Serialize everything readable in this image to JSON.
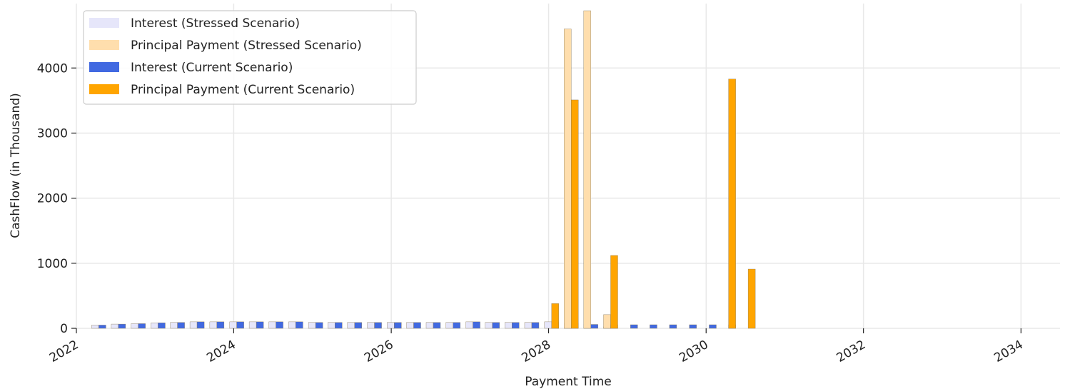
{
  "chart_data": {
    "type": "bar",
    "title": "",
    "xlabel": "Payment Time",
    "ylabel": "CashFlow (in Thousand)",
    "x_axis": {
      "type": "date",
      "range": [
        "2022-01-01",
        "2034-07-01"
      ],
      "ticks": [
        "2022",
        "2024",
        "2026",
        "2028",
        "2030",
        "2032",
        "2034"
      ]
    },
    "y_axis": {
      "range": [
        0,
        4990
      ],
      "ticks": [
        0,
        1000,
        2000,
        3000,
        4000
      ]
    },
    "grid": true,
    "legend_position": "top-left",
    "colors": {
      "interest_stressed": "#e6e6fa",
      "principal_stressed": "#ffdead",
      "interest_current": "#4169e1",
      "principal_current": "#ffa500"
    },
    "series": [
      {
        "name": "Interest (Stressed Scenario)",
        "color": "#e6e6fa",
        "points": [
          {
            "x": "2022-04-15",
            "y": 50
          },
          {
            "x": "2022-07-15",
            "y": 65
          },
          {
            "x": "2022-10-15",
            "y": 72
          },
          {
            "x": "2023-01-15",
            "y": 85
          },
          {
            "x": "2023-04-15",
            "y": 90
          },
          {
            "x": "2023-07-15",
            "y": 100
          },
          {
            "x": "2023-10-15",
            "y": 100
          },
          {
            "x": "2024-01-15",
            "y": 100
          },
          {
            "x": "2024-04-15",
            "y": 100
          },
          {
            "x": "2024-07-15",
            "y": 100
          },
          {
            "x": "2024-10-15",
            "y": 100
          },
          {
            "x": "2025-01-15",
            "y": 90
          },
          {
            "x": "2025-04-15",
            "y": 90
          },
          {
            "x": "2025-07-15",
            "y": 90
          },
          {
            "x": "2025-10-15",
            "y": 90
          },
          {
            "x": "2026-01-15",
            "y": 90
          },
          {
            "x": "2026-04-15",
            "y": 90
          },
          {
            "x": "2026-07-15",
            "y": 90
          },
          {
            "x": "2026-10-15",
            "y": 90
          },
          {
            "x": "2027-01-15",
            "y": 100
          },
          {
            "x": "2027-04-15",
            "y": 90
          },
          {
            "x": "2027-07-15",
            "y": 90
          },
          {
            "x": "2027-10-15",
            "y": 90
          },
          {
            "x": "2028-01-15",
            "y": 100
          },
          {
            "x": "2028-04-15",
            "y": 80
          },
          {
            "x": "2028-07-15",
            "y": 60
          },
          {
            "x": "2028-10-15",
            "y": 25
          }
        ]
      },
      {
        "name": "Principal Payment (Stressed Scenario)",
        "color": "#ffdead",
        "points": [
          {
            "x": "2028-04-15",
            "y": 4600
          },
          {
            "x": "2028-07-15",
            "y": 4880
          },
          {
            "x": "2028-10-15",
            "y": 210
          }
        ]
      },
      {
        "name": "Interest (Current Scenario)",
        "color": "#4169e1",
        "points": [
          {
            "x": "2022-04-15",
            "y": 50
          },
          {
            "x": "2022-07-15",
            "y": 65
          },
          {
            "x": "2022-10-15",
            "y": 72
          },
          {
            "x": "2023-01-15",
            "y": 85
          },
          {
            "x": "2023-04-15",
            "y": 90
          },
          {
            "x": "2023-07-15",
            "y": 100
          },
          {
            "x": "2023-10-15",
            "y": 100
          },
          {
            "x": "2024-01-15",
            "y": 100
          },
          {
            "x": "2024-04-15",
            "y": 100
          },
          {
            "x": "2024-07-15",
            "y": 100
          },
          {
            "x": "2024-10-15",
            "y": 100
          },
          {
            "x": "2025-01-15",
            "y": 90
          },
          {
            "x": "2025-04-15",
            "y": 90
          },
          {
            "x": "2025-07-15",
            "y": 90
          },
          {
            "x": "2025-10-15",
            "y": 90
          },
          {
            "x": "2026-01-15",
            "y": 90
          },
          {
            "x": "2026-04-15",
            "y": 90
          },
          {
            "x": "2026-07-15",
            "y": 90
          },
          {
            "x": "2026-10-15",
            "y": 90
          },
          {
            "x": "2027-01-15",
            "y": 100
          },
          {
            "x": "2027-04-15",
            "y": 90
          },
          {
            "x": "2027-07-15",
            "y": 90
          },
          {
            "x": "2027-10-15",
            "y": 90
          },
          {
            "x": "2028-01-15",
            "y": 100
          },
          {
            "x": "2028-04-15",
            "y": 80
          },
          {
            "x": "2028-07-15",
            "y": 60
          },
          {
            "x": "2028-10-15",
            "y": 55
          },
          {
            "x": "2029-01-15",
            "y": 55
          },
          {
            "x": "2029-04-15",
            "y": 55
          },
          {
            "x": "2029-07-15",
            "y": 55
          },
          {
            "x": "2029-10-15",
            "y": 55
          },
          {
            "x": "2030-01-15",
            "y": 55
          },
          {
            "x": "2030-04-15",
            "y": 55
          }
        ]
      },
      {
        "name": "Principal Payment (Current Scenario)",
        "color": "#ffa500",
        "points": [
          {
            "x": "2028-01-15",
            "y": 380
          },
          {
            "x": "2028-04-15",
            "y": 3510
          },
          {
            "x": "2028-10-15",
            "y": 1120
          },
          {
            "x": "2030-04-15",
            "y": 3830
          },
          {
            "x": "2030-07-15",
            "y": 910
          }
        ]
      }
    ]
  }
}
